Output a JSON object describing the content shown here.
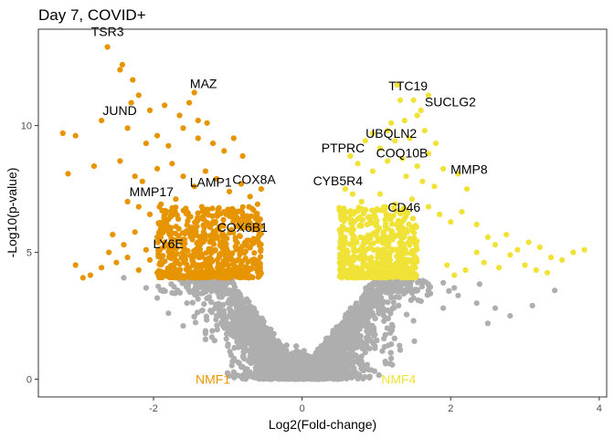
{
  "chart_data": {
    "type": "scatter",
    "title": "Day 7, COVID+",
    "xlabel": "Log2(Fold-change)",
    "ylabel": "-Log10(p-value)",
    "xlim": [
      -3.55,
      4.1
    ],
    "ylim": [
      -0.7,
      13.8
    ],
    "xticks": [
      -2,
      0,
      2,
      4
    ],
    "xtick_labels": [
      "-2",
      "0",
      "2",
      "4"
    ],
    "yticks": [
      0,
      5,
      10
    ],
    "ytick_labels": [
      "0",
      "5",
      "10"
    ],
    "grid": false,
    "legend": "none",
    "significance_threshold_y": 4,
    "colors": {
      "NMF1": "#E69500",
      "NMF4": "#F0E236",
      "nonsig": "#AEAEAE"
    },
    "group_labels": [
      {
        "text": "NMF1",
        "x": -1.2,
        "y": 0,
        "color": "#E69500"
      },
      {
        "text": "NMF4",
        "x": 1.3,
        "y": 0,
        "color": "#F0E236"
      }
    ],
    "series": [
      {
        "group": "NMF1",
        "color": "#E69500",
        "points": [
          [
            -2.62,
            13.1
          ],
          [
            -2.42,
            12.4
          ],
          [
            -2.45,
            12.2
          ],
          [
            -2.28,
            11.8
          ],
          [
            -2.2,
            11.2
          ],
          [
            -2.3,
            10.9
          ],
          [
            -2.05,
            10.6
          ],
          [
            -1.85,
            10.8
          ],
          [
            -1.65,
            10.4
          ],
          [
            -1.52,
            10.9
          ],
          [
            -1.4,
            10.2
          ],
          [
            -1.28,
            10.1
          ],
          [
            -1.45,
            11.3
          ],
          [
            -3.22,
            9.7
          ],
          [
            -3.05,
            9.6
          ],
          [
            -2.7,
            10.2
          ],
          [
            -2.35,
            9.9
          ],
          [
            -2.1,
            9.3
          ],
          [
            -1.95,
            9.6
          ],
          [
            -1.8,
            9.2
          ],
          [
            -1.6,
            9.9
          ],
          [
            -1.4,
            9.5
          ],
          [
            -1.2,
            9.3
          ],
          [
            -1.05,
            9.0
          ],
          [
            -0.92,
            9.5
          ],
          [
            -0.8,
            8.8
          ],
          [
            -3.15,
            8.1
          ],
          [
            -2.8,
            8.4
          ],
          [
            -2.45,
            8.6
          ],
          [
            -2.25,
            8.0
          ],
          [
            -2.15,
            7.8
          ],
          [
            -1.95,
            8.3
          ],
          [
            -1.75,
            8.5
          ],
          [
            -1.6,
            8.0
          ],
          [
            -1.45,
            7.6
          ],
          [
            -1.3,
            8.2
          ],
          [
            -1.15,
            7.9
          ],
          [
            -0.98,
            7.4
          ],
          [
            -0.82,
            7.7
          ],
          [
            -0.7,
            7.2
          ],
          [
            -0.6,
            6.9
          ],
          [
            -0.55,
            7.5
          ],
          [
            -2.35,
            7.0
          ],
          [
            -2.2,
            6.8
          ],
          [
            -2.05,
            6.5
          ],
          [
            -1.9,
            6.9
          ],
          [
            -1.8,
            6.3
          ],
          [
            -1.7,
            7.1
          ],
          [
            -1.55,
            6.6
          ],
          [
            -1.35,
            6.8
          ],
          [
            -1.2,
            6.2
          ],
          [
            -1.05,
            6.6
          ],
          [
            -0.9,
            6.4
          ],
          [
            -0.75,
            6.0
          ],
          [
            -2.55,
            5.7
          ],
          [
            -2.4,
            5.3
          ],
          [
            -2.25,
            5.8
          ],
          [
            -2.1,
            5.1
          ],
          [
            -1.95,
            5.6
          ],
          [
            -1.85,
            5.4
          ],
          [
            -2.6,
            5.0
          ],
          [
            -2.5,
            4.6
          ],
          [
            -2.35,
            4.8
          ],
          [
            -2.7,
            4.4
          ],
          [
            -2.85,
            4.1
          ],
          [
            -2.2,
            4.3
          ],
          [
            -2.05,
            4.7
          ],
          [
            -1.95,
            4.2
          ],
          [
            -3.05,
            4.5
          ],
          [
            -2.95,
            4.0
          ]
        ]
      },
      {
        "group": "NMF4",
        "color": "#F0E236",
        "points": [
          [
            1.32,
            11.0
          ],
          [
            1.28,
            11.6
          ],
          [
            1.5,
            11.0
          ],
          [
            1.6,
            10.6
          ],
          [
            1.7,
            11.2
          ],
          [
            1.55,
            10.4
          ],
          [
            1.2,
            10.1
          ],
          [
            1.15,
            9.8
          ],
          [
            1.38,
            10.2
          ],
          [
            0.85,
            9.4
          ],
          [
            0.95,
            9.7
          ],
          [
            1.05,
            9.1
          ],
          [
            1.25,
            9.4
          ],
          [
            1.45,
            9.5
          ],
          [
            1.65,
            9.8
          ],
          [
            1.8,
            9.3
          ],
          [
            1.7,
            8.9
          ],
          [
            1.55,
            8.4
          ],
          [
            1.35,
            8.7
          ],
          [
            0.65,
            8.8
          ],
          [
            0.75,
            8.5
          ],
          [
            0.95,
            8.2
          ],
          [
            1.15,
            8.6
          ],
          [
            1.4,
            8.0
          ],
          [
            1.62,
            7.8
          ],
          [
            1.78,
            7.6
          ],
          [
            1.9,
            8.3
          ],
          [
            2.1,
            8.1
          ],
          [
            2.22,
            7.5
          ],
          [
            0.58,
            7.5
          ],
          [
            0.68,
            7.3
          ],
          [
            0.8,
            7.0
          ],
          [
            1.05,
            7.3
          ],
          [
            1.25,
            6.9
          ],
          [
            1.48,
            7.1
          ],
          [
            1.7,
            6.8
          ],
          [
            1.85,
            6.5
          ],
          [
            2.0,
            6.2
          ],
          [
            2.15,
            6.6
          ],
          [
            2.35,
            6.1
          ],
          [
            2.5,
            5.6
          ],
          [
            2.6,
            5.3
          ],
          [
            2.75,
            5.7
          ],
          [
            2.9,
            5.1
          ],
          [
            3.05,
            5.4
          ],
          [
            3.2,
            5.2
          ],
          [
            3.35,
            4.8
          ],
          [
            3.5,
            4.7
          ],
          [
            2.35,
            5.0
          ],
          [
            2.45,
            4.6
          ],
          [
            2.65,
            4.4
          ],
          [
            2.8,
            4.9
          ],
          [
            3.0,
            4.5
          ],
          [
            3.15,
            4.3
          ],
          [
            3.3,
            4.2
          ],
          [
            3.65,
            5.0
          ],
          [
            3.8,
            5.1
          ],
          [
            2.05,
            4.1
          ],
          [
            2.2,
            4.3
          ],
          [
            1.95,
            4.5
          ]
        ]
      },
      {
        "group": "nonsig",
        "color": "#AEAEAE",
        "points": [
          [
            -2.4,
            4.0
          ],
          [
            -2.1,
            3.6
          ],
          [
            -1.95,
            3.2
          ],
          [
            -1.75,
            3.4
          ],
          [
            -1.55,
            3.0
          ],
          [
            -1.35,
            2.7
          ],
          [
            -1.15,
            2.5
          ],
          [
            -0.95,
            2.2
          ],
          [
            -0.8,
            1.9
          ],
          [
            -0.6,
            1.5
          ],
          [
            -0.4,
            1.0
          ],
          [
            -0.2,
            0.5
          ],
          [
            0.3,
            0.6
          ],
          [
            0.5,
            1.2
          ],
          [
            0.7,
            1.7
          ],
          [
            0.9,
            2.1
          ],
          [
            1.1,
            2.5
          ],
          [
            1.3,
            2.9
          ],
          [
            1.5,
            3.2
          ],
          [
            1.7,
            3.5
          ],
          [
            1.9,
            3.8
          ],
          [
            2.1,
            3.3
          ],
          [
            2.35,
            3.0
          ],
          [
            2.6,
            2.8
          ],
          [
            2.8,
            2.5
          ],
          [
            3.1,
            2.9
          ],
          [
            3.4,
            3.5
          ],
          [
            2.5,
            2.2
          ],
          [
            -1.8,
            2.6
          ],
          [
            -1.6,
            2.1
          ],
          [
            -1.3,
            1.8
          ],
          [
            -1.0,
            1.3
          ],
          [
            -0.7,
            0.9
          ],
          [
            0.8,
            0.9
          ],
          [
            1.1,
            1.6
          ],
          [
            1.5,
            2.3
          ],
          [
            1.9,
            2.8
          ]
        ]
      }
    ],
    "annotations": [
      {
        "text": "TSR3",
        "x": -2.62,
        "y": 13.1
      },
      {
        "text": "MAZ",
        "x": -1.45,
        "y": 11.3
      },
      {
        "text": "JUND",
        "x": -2.7,
        "y": 10.2
      },
      {
        "text": "MMP17",
        "x": -2.15,
        "y": 7.8
      },
      {
        "text": "LAMP1",
        "x": -1.45,
        "y": 7.6
      },
      {
        "text": "COX8A",
        "x": -0.82,
        "y": 7.7
      },
      {
        "text": "LY6E",
        "x": -1.95,
        "y": 5.6
      },
      {
        "text": "COX6B1",
        "x": -1.05,
        "y": 6.6
      },
      {
        "text": "TTC19",
        "x": 1.28,
        "y": 11.6
      },
      {
        "text": "SUCLG2",
        "x": 1.7,
        "y": 11.2
      },
      {
        "text": "UBQLN2",
        "x": 1.2,
        "y": 10.1
      },
      {
        "text": "COQ10B",
        "x": 1.05,
        "y": 9.1
      },
      {
        "text": "PTPRC",
        "x": 0.65,
        "y": 8.8
      },
      {
        "text": "MMP8",
        "x": 2.1,
        "y": 8.1
      },
      {
        "text": "CYB5R4",
        "x": 0.58,
        "y": 7.5
      },
      {
        "text": "CD46",
        "x": 1.25,
        "y": 6.9
      }
    ]
  }
}
